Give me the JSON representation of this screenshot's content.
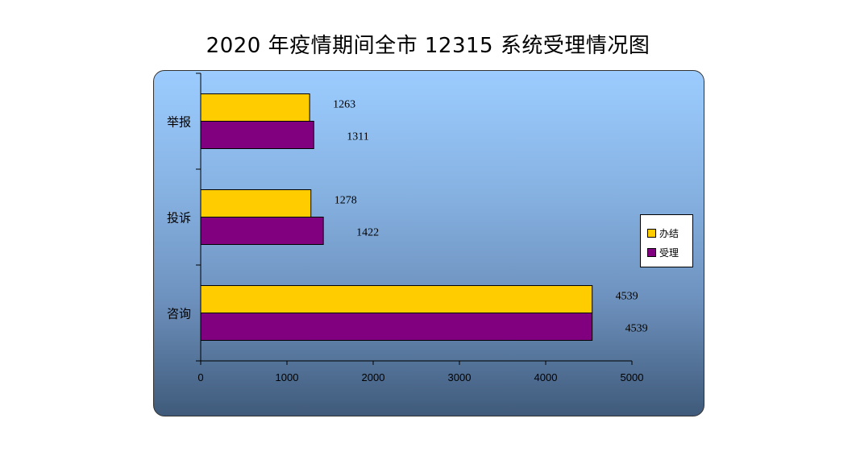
{
  "chart_data": {
    "type": "bar",
    "orientation": "horizontal",
    "title": "2020 年疫情期间全市 12315 系统受理情况图",
    "categories": [
      "举报",
      "投诉",
      "咨询"
    ],
    "series": [
      {
        "name": "办结",
        "color": "#ffcc00",
        "values": [
          1263,
          1278,
          4539
        ]
      },
      {
        "name": "受理",
        "color": "#800080",
        "values": [
          1311,
          1422,
          4539
        ]
      }
    ],
    "xlim": [
      0,
      5000
    ],
    "xticks": [
      0,
      1000,
      2000,
      3000,
      4000,
      5000
    ],
    "xlabel": "",
    "ylabel": "",
    "grid": false,
    "legend_position": "right"
  }
}
